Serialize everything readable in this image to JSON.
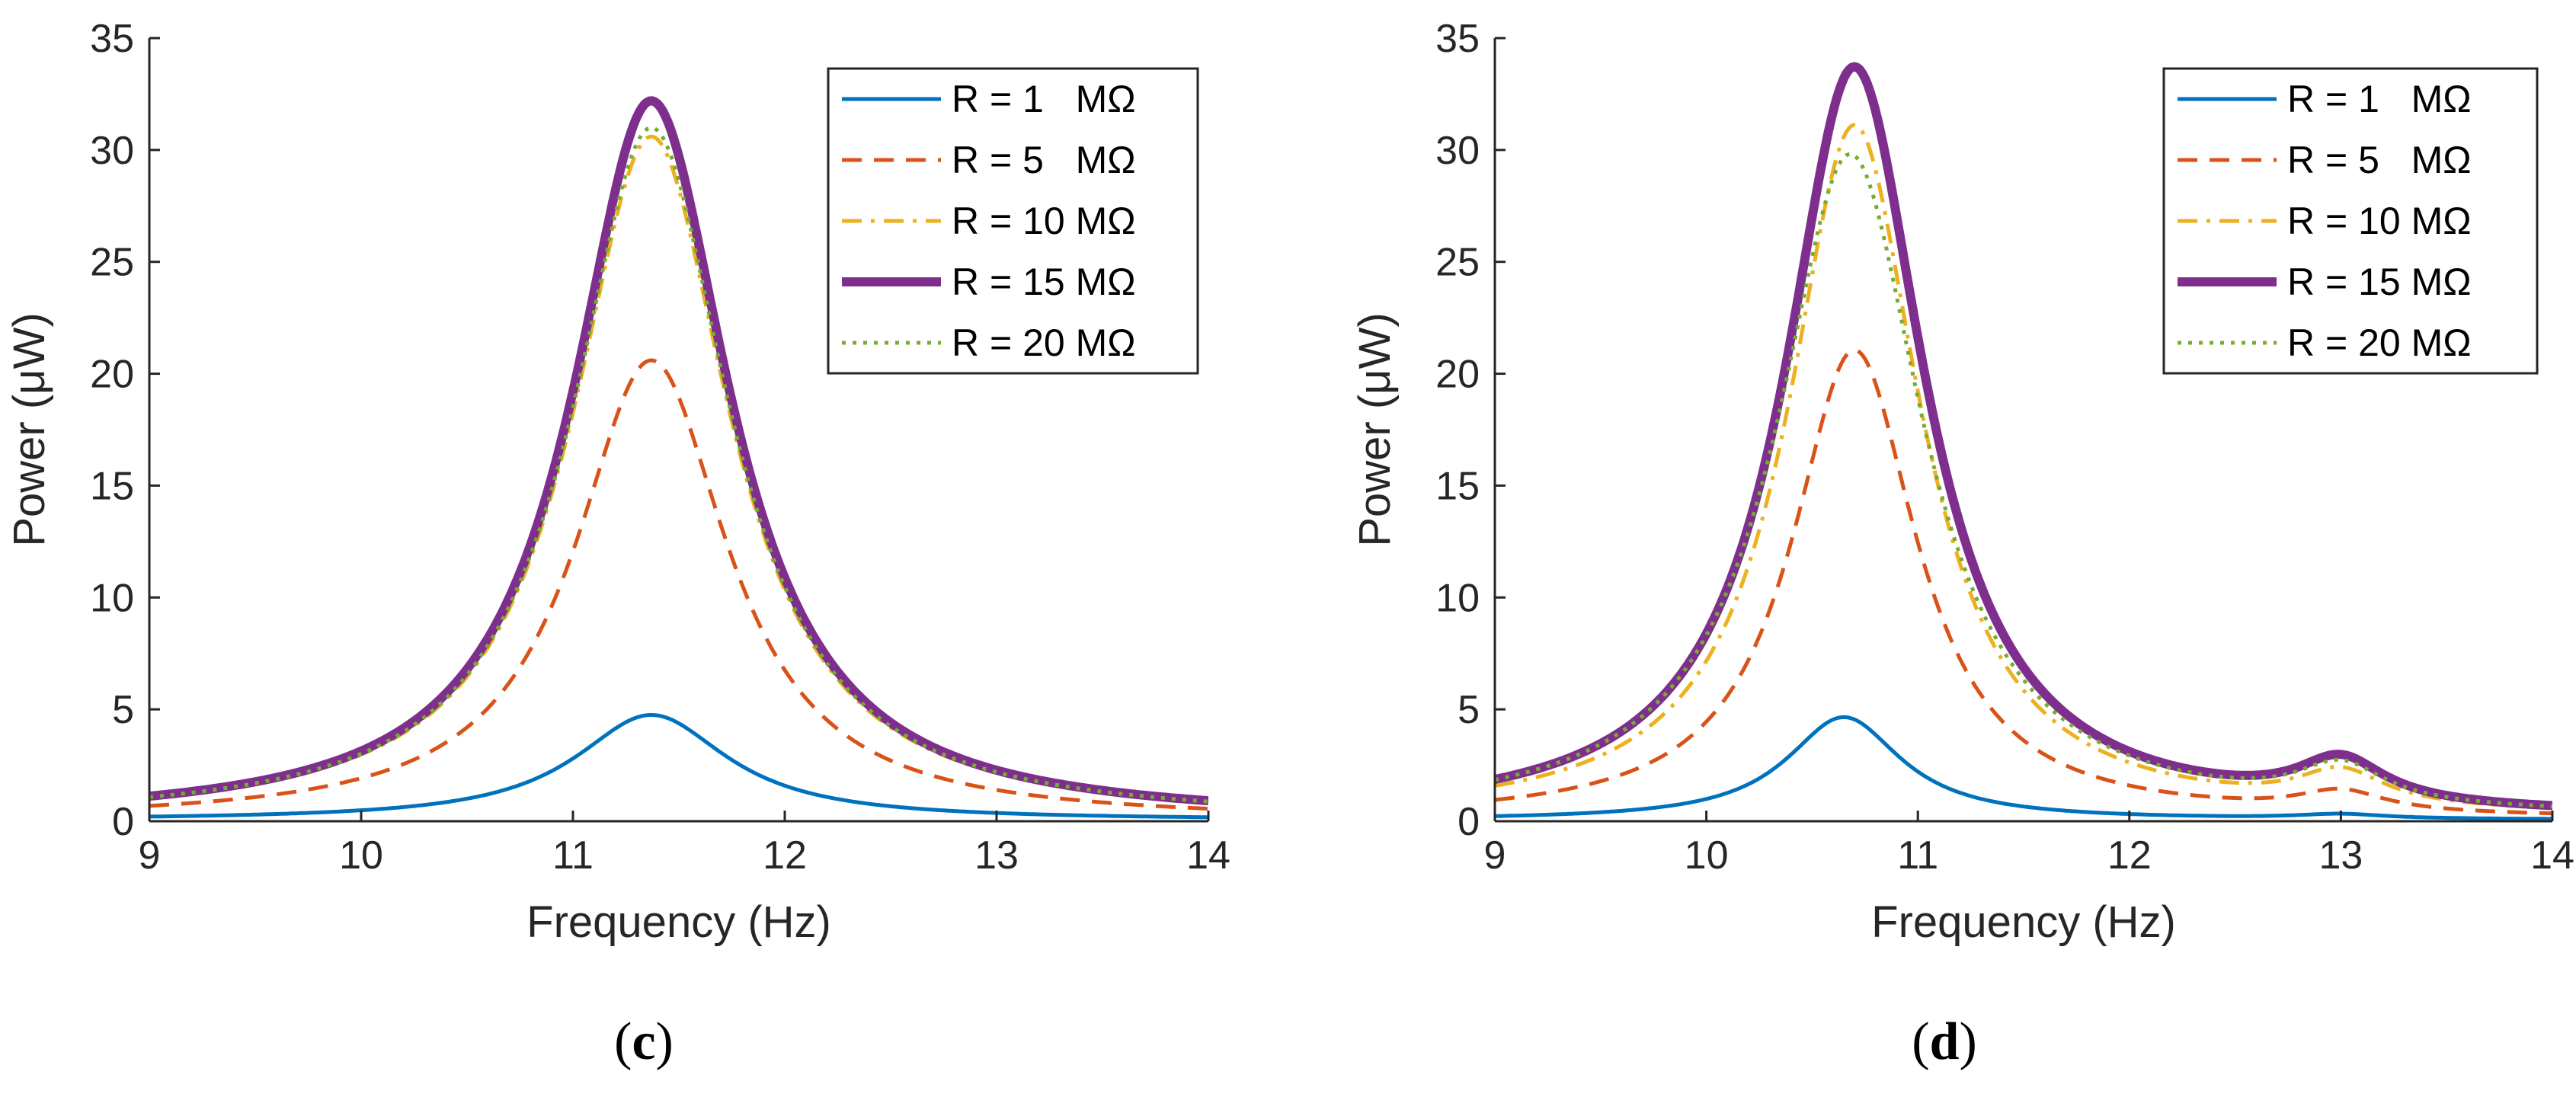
{
  "figure": {
    "panels": [
      "c",
      "d"
    ]
  },
  "chart_data": [
    {
      "type": "line",
      "panel_label": "c",
      "title": "",
      "xlabel": "Frequency (Hz)",
      "ylabel": "Power (μW)",
      "xlim": [
        9,
        14
      ],
      "ylim": [
        0,
        35
      ],
      "xticks": [
        9,
        10,
        11,
        12,
        13,
        14
      ],
      "yticks": [
        0,
        5,
        10,
        15,
        20,
        25,
        30,
        35
      ],
      "grid": false,
      "legend_position": "top-right",
      "series": [
        {
          "name": "R = 1   MΩ",
          "color": "#0072BD",
          "dash": "solid",
          "weight": "thin",
          "resonances": [
            {
              "f0": 11.37,
              "peak": 4.7,
              "gamma": 0.44
            }
          ],
          "base": 0.05
        },
        {
          "name": "R = 5   MΩ",
          "color": "#D95319",
          "dash": "dashed",
          "weight": "thin",
          "resonances": [
            {
              "f0": 11.37,
              "peak": 20.6,
              "gamma": 0.44
            }
          ],
          "base": 0.0
        },
        {
          "name": "R = 10 MΩ",
          "color": "#EDB120",
          "dash": "dashdot",
          "weight": "thin",
          "resonances": [
            {
              "f0": 11.37,
              "peak": 30.6,
              "gamma": 0.45
            }
          ],
          "base": 0.0
        },
        {
          "name": "R = 15 MΩ",
          "color": "#7E2F8E",
          "dash": "solid",
          "weight": "thick",
          "resonances": [
            {
              "f0": 11.37,
              "peak": 32.2,
              "gamma": 0.45
            }
          ],
          "base": 0.0
        },
        {
          "name": "R = 20 MΩ",
          "color": "#77AC30",
          "dash": "dotted",
          "weight": "thin",
          "resonances": [
            {
              "f0": 11.37,
              "peak": 31.0,
              "gamma": 0.45
            }
          ],
          "base": 0.0
        }
      ]
    },
    {
      "type": "line",
      "panel_label": "d",
      "title": "",
      "xlabel": "Frequency (Hz)",
      "ylabel": "Power (μW)",
      "xlim": [
        9,
        14
      ],
      "ylim": [
        0,
        35
      ],
      "xticks": [
        9,
        10,
        11,
        12,
        13,
        14
      ],
      "yticks": [
        0,
        5,
        10,
        15,
        20,
        25,
        30,
        35
      ],
      "grid": false,
      "legend_position": "top-right",
      "series": [
        {
          "name": "R = 1   MΩ",
          "color": "#0072BD",
          "dash": "solid",
          "weight": "thin",
          "resonances": [
            {
              "f0": 10.65,
              "peak": 4.6,
              "gamma": 0.33
            },
            {
              "f0": 13.0,
              "peak": 0.2,
              "gamma": 0.25
            }
          ],
          "base": 0.05
        },
        {
          "name": "R = 5   MΩ",
          "color": "#D95319",
          "dash": "dashed",
          "weight": "thin",
          "resonances": [
            {
              "f0": 10.7,
              "peak": 21.0,
              "gamma": 0.36
            },
            {
              "f0": 13.0,
              "peak": 0.9,
              "gamma": 0.25
            }
          ],
          "base": 0.05
        },
        {
          "name": "R = 10 MΩ",
          "color": "#EDB120",
          "dash": "dashdot",
          "weight": "thin",
          "resonances": [
            {
              "f0": 10.7,
              "peak": 31.0,
              "gamma": 0.38
            },
            {
              "f0": 13.0,
              "peak": 1.5,
              "gamma": 0.25
            }
          ],
          "base": 0.1
        },
        {
          "name": "R = 15 MΩ",
          "color": "#7E2F8E",
          "dash": "solid",
          "weight": "thick",
          "resonances": [
            {
              "f0": 10.7,
              "peak": 33.6,
              "gamma": 0.4
            },
            {
              "f0": 13.0,
              "peak": 1.9,
              "gamma": 0.25
            }
          ],
          "base": 0.1
        },
        {
          "name": "R = 20 MΩ",
          "color": "#77AC30",
          "dash": "dotted",
          "weight": "thin",
          "resonances": [
            {
              "f0": 10.68,
              "peak": 29.7,
              "gamma": 0.42
            },
            {
              "f0": 13.0,
              "peak": 1.7,
              "gamma": 0.25
            }
          ],
          "base": 0.1
        }
      ]
    }
  ]
}
